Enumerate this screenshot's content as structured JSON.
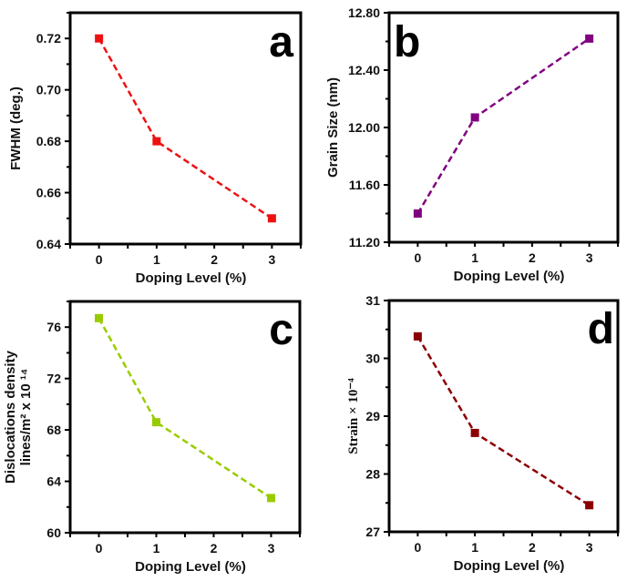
{
  "chart_data": [
    {
      "panel": "a",
      "type": "line",
      "title": "",
      "xlabel": "Doping Level (%)",
      "ylabel": "FWHM (deg.)",
      "x": [
        0,
        1,
        3
      ],
      "series": [
        {
          "name": "FWHM",
          "values": [
            0.72,
            0.68,
            0.65
          ],
          "color": "#ee1111"
        }
      ],
      "xlim": [
        -0.5,
        3.5
      ],
      "ylim": [
        0.64,
        0.73
      ],
      "xticks": [
        0,
        1,
        2,
        3
      ],
      "xtick_labels": [
        "0",
        "1",
        "2",
        "3"
      ],
      "yticks": [
        0.64,
        0.66,
        0.68,
        0.7,
        0.72
      ],
      "ytick_labels": [
        "0.64",
        "0.66",
        "0.68",
        "0.70",
        "0.72"
      ],
      "label": "a",
      "label_position": "top-right",
      "line_style": "dashed",
      "marker": "square",
      "grid": false
    },
    {
      "panel": "b",
      "type": "line",
      "title": "",
      "xlabel": "Doping Level (%)",
      "ylabel": "Grain Size (nm)",
      "x": [
        0,
        1,
        3
      ],
      "series": [
        {
          "name": "Grain Size",
          "values": [
            11.4,
            12.07,
            12.62
          ],
          "color": "#800080"
        }
      ],
      "xlim": [
        -0.5,
        3.5
      ],
      "ylim": [
        11.2,
        12.8
      ],
      "xticks": [
        0,
        1,
        2,
        3
      ],
      "xtick_labels": [
        "0",
        "1",
        "2",
        "3"
      ],
      "yticks": [
        11.2,
        11.6,
        12.0,
        12.4,
        12.8
      ],
      "ytick_labels": [
        "11.20",
        "11.60",
        "12.00",
        "12.40",
        "12.80"
      ],
      "label": "b",
      "label_position": "top-left",
      "line_style": "dashed",
      "marker": "square",
      "grid": false
    },
    {
      "panel": "c",
      "type": "line",
      "title": "",
      "xlabel": "Doping Level (%)",
      "ylabel": "Dislocations density",
      "ylabel_line2": "lines/m² x 10 ¹⁴",
      "x": [
        0,
        1,
        3
      ],
      "series": [
        {
          "name": "Dislocation density",
          "values": [
            76.7,
            68.6,
            62.7
          ],
          "color": "#99cc00"
        }
      ],
      "xlim": [
        -0.5,
        3.5
      ],
      "ylim": [
        60,
        78
      ],
      "xticks": [
        0,
        1,
        2,
        3
      ],
      "xtick_labels": [
        "0",
        "1",
        "2",
        "3"
      ],
      "yticks": [
        60,
        64,
        68,
        72,
        76
      ],
      "ytick_labels": [
        "60",
        "64",
        "68",
        "72",
        "76"
      ],
      "label": "c",
      "label_position": "top-right",
      "line_style": "dashed",
      "marker": "square",
      "grid": false
    },
    {
      "panel": "d",
      "type": "line",
      "title": "",
      "xlabel": "Doping Level (%)",
      "ylabel": "Strain × 10⁻⁴",
      "x": [
        0,
        1,
        3
      ],
      "series": [
        {
          "name": "Strain",
          "values": [
            30.38,
            28.71,
            27.46
          ],
          "color": "#8b0000"
        }
      ],
      "xlim": [
        -0.5,
        3.5
      ],
      "ylim": [
        27,
        31
      ],
      "xticks": [
        0,
        1,
        2,
        3
      ],
      "xtick_labels": [
        "0",
        "1",
        "2",
        "3"
      ],
      "yticks": [
        27,
        28,
        29,
        30,
        31
      ],
      "ytick_labels": [
        "27",
        "28",
        "29",
        "30",
        "31"
      ],
      "label": "d",
      "label_position": "top-right",
      "line_style": "dashed",
      "marker": "square",
      "grid": false
    }
  ]
}
